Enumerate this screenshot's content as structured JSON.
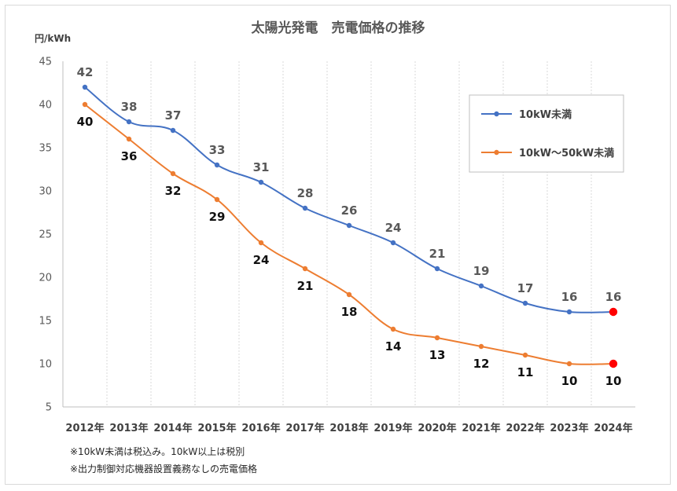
{
  "chart_data": {
    "type": "line",
    "title": "太陽光発電　売電価格の推移",
    "ylabel": "円/kWh",
    "xlabel": "",
    "categories": [
      "2012年",
      "2013年",
      "2014年",
      "2015年",
      "2016年",
      "2017年",
      "2018年",
      "2019年",
      "2020年",
      "2021年",
      "2022年",
      "2023年",
      "2024年"
    ],
    "ylim": [
      5,
      45
    ],
    "yticks": [
      5,
      10,
      15,
      20,
      25,
      30,
      35,
      40,
      45
    ],
    "series": [
      {
        "name": "10kW未満",
        "values": [
          42,
          38,
          37,
          33,
          31,
          28,
          26,
          24,
          21,
          19,
          17,
          16,
          16
        ],
        "color": "#4472C4",
        "label_position": "above"
      },
      {
        "name": "10kW～50kW未満",
        "values": [
          40,
          36,
          32,
          29,
          24,
          21,
          18,
          14,
          13,
          12,
          11,
          10,
          10
        ],
        "color": "#ED7D31",
        "label_position": "below"
      }
    ],
    "highlight_last_point_color": "#FF0000",
    "grid": "vertical-dotted",
    "legend_position": "top-right",
    "notes": [
      "※10kW未満は税込み。10kW以上は税別",
      "※出力制御対応機器設置義務なしの売電価格"
    ]
  }
}
